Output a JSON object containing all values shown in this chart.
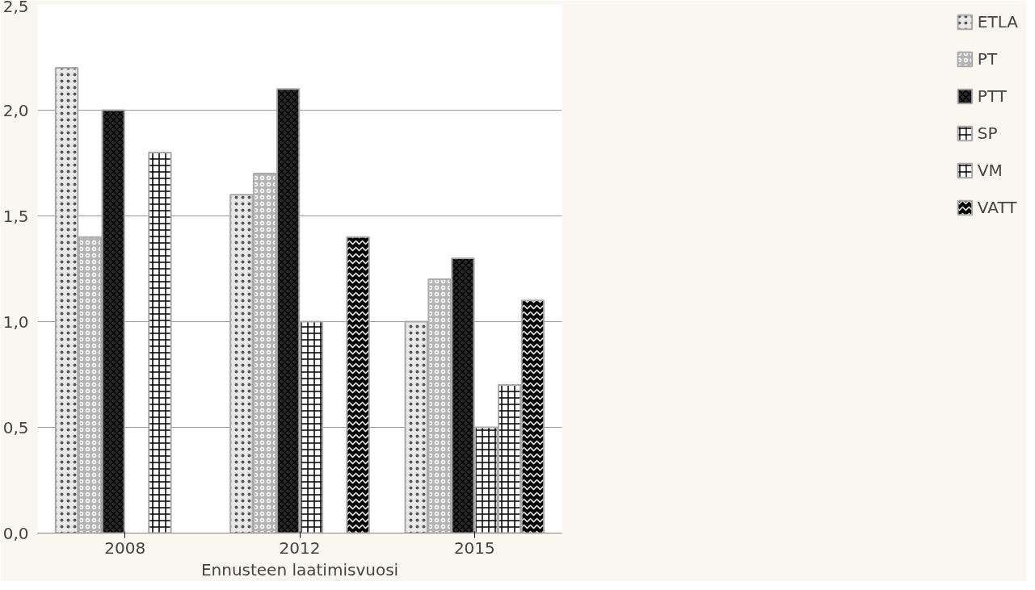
{
  "chart_data": {
    "type": "bar",
    "xlabel": "Ennusteen laatimisvuosi",
    "categories": [
      "2008",
      "2012",
      "2015"
    ],
    "series": [
      {
        "name": "ETLA",
        "color": "#e8e8e8",
        "values": [
          2.2,
          1.6,
          1.0
        ]
      },
      {
        "name": "PT",
        "color": "#b4b4b4",
        "values": [
          1.4,
          1.7,
          1.2
        ]
      },
      {
        "name": "PTT",
        "color": "#2a2a2a",
        "values": [
          2.0,
          2.1,
          1.3
        ]
      },
      {
        "name": "SP",
        "color": "#ffffff",
        "values": [
          null,
          1.0,
          0.5
        ]
      },
      {
        "name": "VM",
        "color": "#ffffff",
        "values": [
          1.8,
          null,
          0.7
        ]
      },
      {
        "name": "VATT",
        "color": "#000000",
        "values": [
          null,
          1.4,
          1.1
        ]
      }
    ],
    "ylim": [
      0,
      2.5
    ],
    "yticks": [
      {
        "value": 0,
        "label": "0,0"
      },
      {
        "value": 0.5,
        "label": "0,5"
      },
      {
        "value": 1,
        "label": "1,0"
      },
      {
        "value": 1.5,
        "label": "1,5"
      },
      {
        "value": 2,
        "label": "2,0"
      },
      {
        "value": 2.5,
        "label": "2,5"
      }
    ],
    "grid": "y",
    "legend": "right"
  }
}
